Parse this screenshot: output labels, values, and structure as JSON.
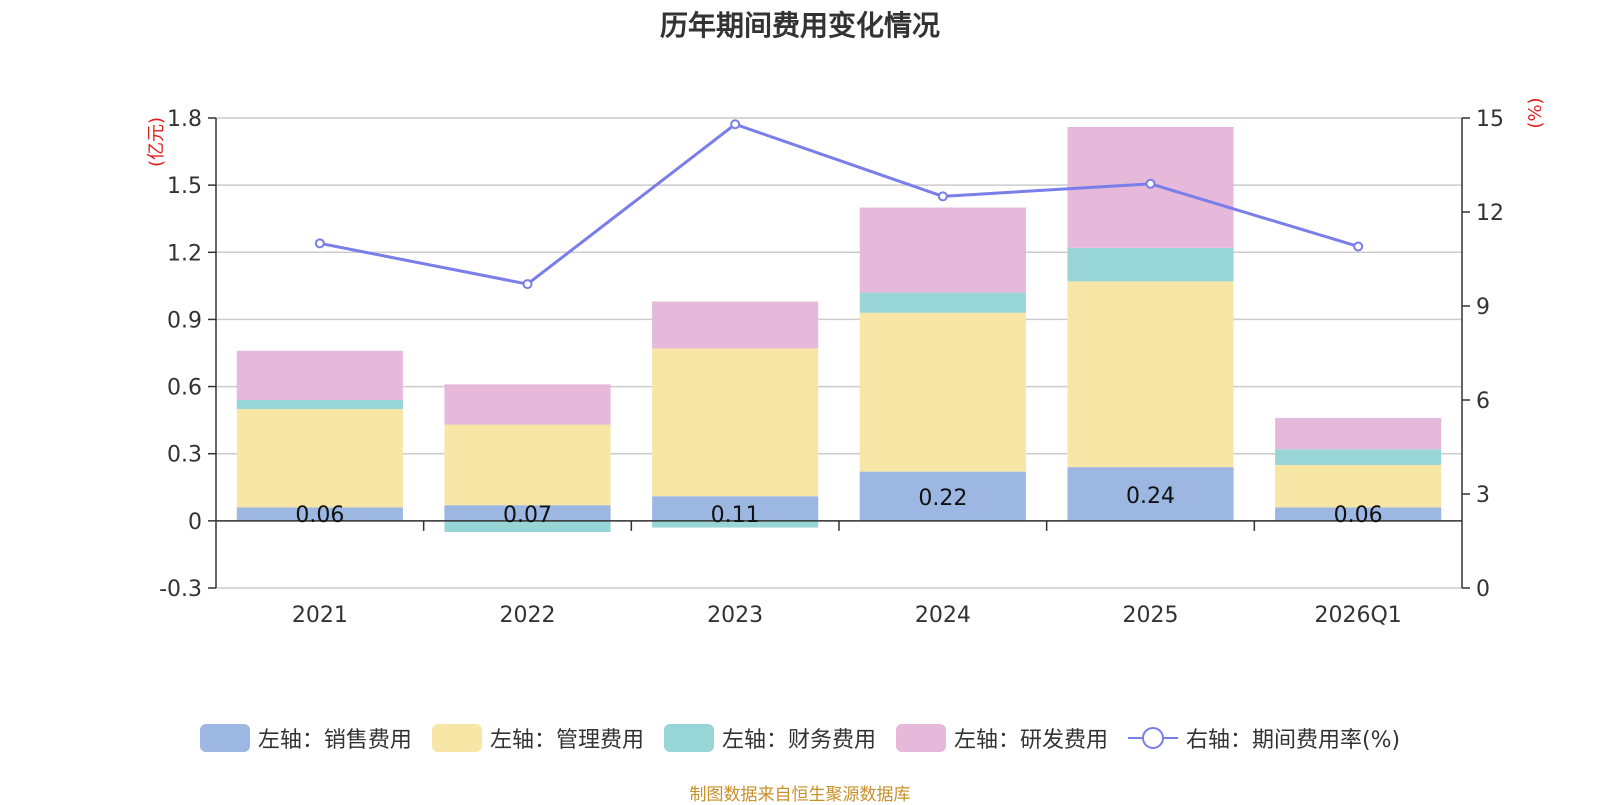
{
  "chart_data": {
    "type": "bar",
    "title": "历年期间费用变化情况",
    "categories": [
      "2021",
      "2022",
      "2023",
      "2024",
      "2025",
      "2026Q1"
    ],
    "left_axis": {
      "unit_label": "(亿元)",
      "ylim": [
        -0.3,
        1.8
      ],
      "ticks": [
        "-0.3",
        "0",
        "0.3",
        "0.6",
        "0.9",
        "1.2",
        "1.5",
        "1.8"
      ]
    },
    "right_axis": {
      "unit_label": "(%)",
      "ylim": [
        0,
        15
      ],
      "ticks": [
        "0",
        "3",
        "6",
        "9",
        "12",
        "15"
      ]
    },
    "series": [
      {
        "name": "左轴：销售费用",
        "type": "bar",
        "color": "#9bb7e2",
        "values": [
          0.06,
          0.07,
          0.11,
          0.22,
          0.24,
          0.06
        ],
        "labels": [
          "0.06",
          "0.07",
          "0.11",
          "0.22",
          "0.24",
          "0.06"
        ]
      },
      {
        "name": "左轴：管理费用",
        "type": "bar",
        "color": "#f8e6a7",
        "values": [
          0.44,
          0.36,
          0.66,
          0.71,
          0.83,
          0.19
        ]
      },
      {
        "name": "左轴：财务费用",
        "type": "bar",
        "color": "#98d5d6",
        "values": [
          0.04,
          -0.05,
          -0.03,
          0.09,
          0.15,
          0.07
        ]
      },
      {
        "name": "左轴：研发费用",
        "type": "bar",
        "color": "#e6b9da",
        "values": [
          0.22,
          0.18,
          0.21,
          0.38,
          0.54,
          0.14
        ]
      },
      {
        "name": "右轴：期间费用率(%)",
        "type": "line",
        "color": "#7a7ee8",
        "values": [
          11.0,
          9.7,
          14.8,
          12.5,
          12.9,
          10.9
        ]
      }
    ]
  },
  "source": "制图数据来自恒生聚源数据库"
}
